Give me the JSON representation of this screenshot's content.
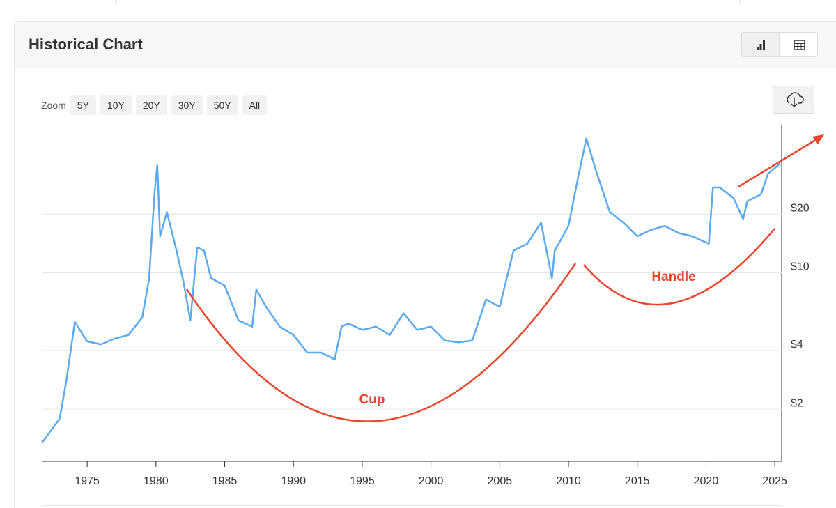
{
  "header": {
    "title": "Historical Chart"
  },
  "zoom": {
    "label": "Zoom",
    "options": [
      "5Y",
      "10Y",
      "20Y",
      "30Y",
      "50Y",
      "All"
    ]
  },
  "chart_data": {
    "type": "line",
    "log_y": true,
    "grid": true,
    "annotations": [
      "Cup",
      "Handle"
    ],
    "xlim": [
      1971.7,
      2025.5
    ],
    "xticks": [
      1975,
      1980,
      1985,
      1990,
      1995,
      2000,
      2005,
      2010,
      2015,
      2020,
      2025
    ],
    "ylim": [
      1.08,
      57
    ],
    "yticks": [
      {
        "value": 2,
        "label": "$2"
      },
      {
        "value": 4,
        "label": "$4"
      },
      {
        "value": 10,
        "label": "$10"
      },
      {
        "value": 20,
        "label": "$20"
      }
    ],
    "series": [
      {
        "color": "#5aaaee",
        "x": [
          1971.7,
          1973,
          1973.5,
          1974.1,
          1975,
          1976,
          1977,
          1978,
          1979,
          1979.5,
          1979.9,
          1980.1,
          1980.3,
          1980.8,
          1981.5,
          1982,
          1982.5,
          1983,
          1983.5,
          1984,
          1985,
          1986,
          1987,
          1987.3,
          1988,
          1989,
          1990,
          1991,
          1992,
          1993,
          1993.5,
          1994,
          1995,
          1996,
          1997,
          1998,
          1999,
          2000,
          2001,
          2002,
          2003,
          2004,
          2005,
          2006,
          2007,
          2008,
          2008.8,
          2009,
          2010,
          2010.7,
          2011.3,
          2012,
          2013,
          2014,
          2015,
          2016,
          2017,
          2018,
          2019,
          2020.2,
          2020.5,
          2021,
          2022,
          2022.7,
          2023,
          2024,
          2024.5,
          2025.4
        ],
        "values": [
          1.34,
          1.79,
          2.83,
          5.6,
          4.45,
          4.3,
          4.6,
          4.8,
          5.9,
          9.3,
          25.9,
          35.6,
          15.4,
          20.5,
          13,
          9.0,
          5.7,
          13.5,
          13,
          9.4,
          8.6,
          5.7,
          5.3,
          8.2,
          6.7,
          5.3,
          4.8,
          3.9,
          3.9,
          3.6,
          5.3,
          5.5,
          5.1,
          5.3,
          4.8,
          6.2,
          5.1,
          5.3,
          4.5,
          4.4,
          4.5,
          7.3,
          6.7,
          13,
          14.1,
          18.1,
          9.4,
          13,
          17.4,
          31,
          48.8,
          33.4,
          20.5,
          18.1,
          15.4,
          16.6,
          17.4,
          16,
          15.4,
          14.1,
          27.4,
          27.4,
          24.2,
          18.9,
          23.3,
          25.3,
          32.2,
          36.4
        ]
      }
    ]
  }
}
